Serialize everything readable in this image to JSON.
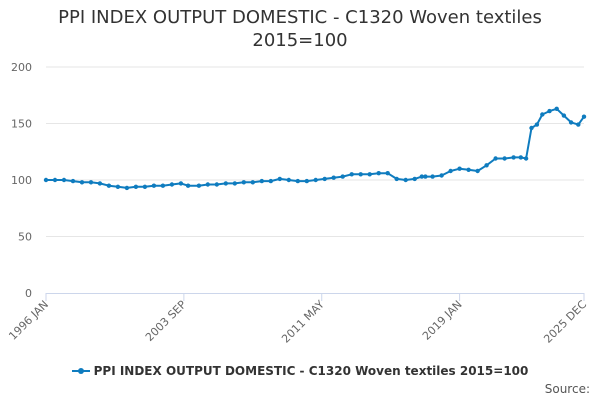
{
  "chart_data": {
    "type": "line",
    "title_line1": "PPI INDEX OUTPUT DOMESTIC - C1320 Woven textiles",
    "title_line2": "2015=100",
    "xlabel": "",
    "ylabel": "",
    "ylim": [
      0,
      200
    ],
    "yticks": [
      0,
      50,
      100,
      150,
      200
    ],
    "x_range": [
      1996.0,
      2025.917
    ],
    "xtick_labels": [
      "1996 JAN",
      "2003 SEP",
      "2011 MAY",
      "2019 JAN",
      "2025 DEC"
    ],
    "xtick_values": [
      1996.0,
      2003.667,
      2011.333,
      2019.0,
      2025.917
    ],
    "legend_position": "bottom",
    "series": [
      {
        "name": "PPI INDEX OUTPUT DOMESTIC - C1320 Woven textiles 2015=100",
        "color": "#0f7cbf",
        "x": [
          1996.0,
          1996.5,
          1997.0,
          1997.5,
          1998.0,
          1998.5,
          1999.0,
          1999.5,
          2000.0,
          2000.5,
          2001.0,
          2001.5,
          2002.0,
          2002.5,
          2003.0,
          2003.5,
          2003.9,
          2004.5,
          2005.0,
          2005.5,
          2006.0,
          2006.5,
          2007.0,
          2007.5,
          2008.0,
          2008.5,
          2009.0,
          2009.5,
          2010.0,
          2010.5,
          2011.0,
          2011.5,
          2012.0,
          2012.5,
          2013.0,
          2013.5,
          2014.0,
          2014.5,
          2015.0,
          2015.5,
          2016.0,
          2016.5,
          2016.9,
          2017.1,
          2017.5,
          2018.0,
          2018.5,
          2019.0,
          2019.5,
          2020.0,
          2020.5,
          2021.0,
          2021.5,
          2022.0,
          2022.4,
          2022.7,
          2023.0,
          2023.3,
          2023.6,
          2024.0,
          2024.4,
          2024.8,
          2025.2,
          2025.6,
          2025.917
        ],
        "values": [
          100,
          100,
          100,
          99,
          98,
          98,
          97,
          95,
          94,
          93,
          94,
          94,
          95,
          95,
          96,
          97,
          95,
          95,
          96,
          96,
          97,
          97,
          98,
          98,
          99,
          99,
          101,
          100,
          99,
          99,
          100,
          101,
          102,
          103,
          105,
          105,
          105,
          106,
          106,
          101,
          100,
          101,
          103,
          103,
          103,
          104,
          108,
          110,
          109,
          108,
          113,
          119,
          119,
          120,
          120,
          119,
          146,
          149,
          158,
          161,
          163,
          157,
          151,
          149,
          156
        ]
      }
    ],
    "credit": "Source:"
  }
}
